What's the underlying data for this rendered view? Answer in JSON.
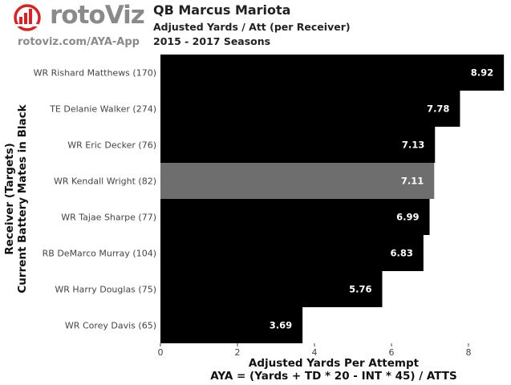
{
  "header": {
    "logo_text": "rotoViz",
    "site_url": "rotoviz.com/AYA-App",
    "title": "QB Marcus Mariota",
    "subtitle": "Adjusted Yards / Att (per Receiver)",
    "seasons": "2015 - 2017 Seasons"
  },
  "chart_data": {
    "type": "bar",
    "orientation": "horizontal",
    "categories": [
      "WR Rishard Matthews (170)",
      "TE Delanie Walker (274)",
      "WR Eric Decker (76)",
      "WR Kendall Wright (82)",
      "WR Tajae Sharpe (77)",
      "RB DeMarco Murray (104)",
      "WR Harry Douglas (75)",
      "WR Corey Davis (65)"
    ],
    "values": [
      8.92,
      7.78,
      7.13,
      7.11,
      6.99,
      6.83,
      5.76,
      3.69
    ],
    "value_labels": [
      "8.92",
      "7.78",
      "7.13",
      "7.11",
      "6.99",
      "6.83",
      "5.76",
      "3.69"
    ],
    "bar_colors": [
      "#000000",
      "#000000",
      "#000000",
      "#6e6e6e",
      "#000000",
      "#000000",
      "#000000",
      "#000000"
    ],
    "xlim": [
      0,
      9
    ],
    "xticks": [
      0,
      2,
      4,
      6,
      8
    ],
    "xtick_labels": [
      "0",
      "2",
      "4",
      "6",
      "8"
    ],
    "xlabel_line1": "Adjusted Yards Per Attempt",
    "xlabel_line2": "AYA = (Yards + TD * 20 - INT * 45) / ATTS",
    "ylabel_line1": "Receiver (Targets)",
    "ylabel_line2": "Current Battery Mates in Black",
    "grid": false
  },
  "colors": {
    "current_teammate": "#000000",
    "former_teammate": "#6e6e6e",
    "logo_red": "#e02020"
  },
  "icons": {
    "logo": "rotoviz-bar-logo-icon"
  }
}
